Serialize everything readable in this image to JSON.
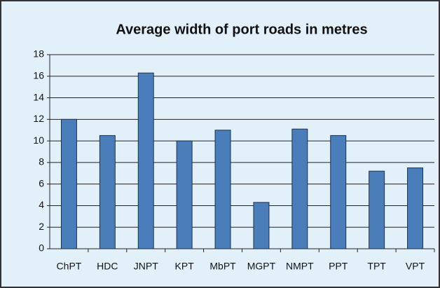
{
  "chart_data": {
    "type": "bar",
    "title": "Average width of port roads in metres",
    "categories": [
      "ChPT",
      "HDC",
      "JNPT",
      "KPT",
      "MbPT",
      "MGPT",
      "NMPT",
      "PPT",
      "TPT",
      "VPT"
    ],
    "values": [
      12,
      10.5,
      16.3,
      10,
      11,
      4.3,
      11.1,
      10.5,
      7.2,
      7.5
    ],
    "color": "#4a7ebb",
    "ylim": [
      0,
      18
    ],
    "yticks": [
      0,
      2,
      4,
      6,
      8,
      10,
      12,
      14,
      16,
      18
    ],
    "grid": true
  }
}
